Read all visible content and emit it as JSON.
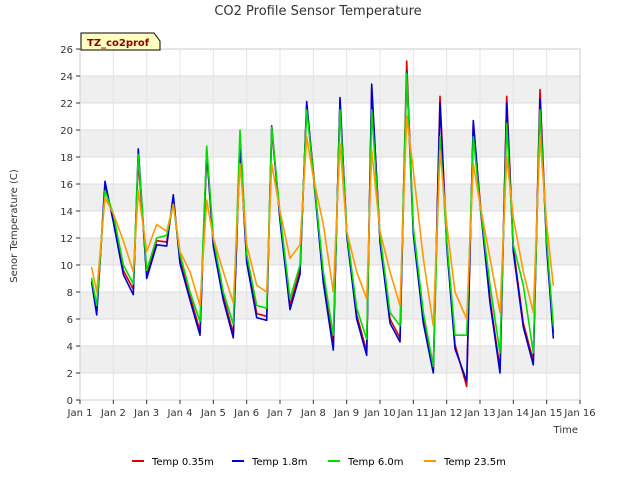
{
  "chart_data": {
    "type": "line",
    "title": "CO2 Profile Sensor Temperature",
    "xlabel": "Time",
    "ylabel": "Senor Temperature (C)",
    "badge": "TZ_co2prof",
    "xlim": [
      1,
      16
    ],
    "ylim": [
      0,
      26
    ],
    "x_ticks": [
      {
        "v": 1,
        "label": "Jan 1"
      },
      {
        "v": 2,
        "label": "Jan 2"
      },
      {
        "v": 3,
        "label": "Jan 3"
      },
      {
        "v": 4,
        "label": "Jan 4"
      },
      {
        "v": 5,
        "label": "Jan 5"
      },
      {
        "v": 6,
        "label": "Jan 6"
      },
      {
        "v": 7,
        "label": "Jan 7"
      },
      {
        "v": 8,
        "label": "Jan 8"
      },
      {
        "v": 9,
        "label": "Jan 9"
      },
      {
        "v": 10,
        "label": "Jan 10"
      },
      {
        "v": 11,
        "label": "Jan 11"
      },
      {
        "v": 12,
        "label": "Jan 12"
      },
      {
        "v": 13,
        "label": "Jan 13"
      },
      {
        "v": 14,
        "label": "Jan 14"
      },
      {
        "v": 15,
        "label": "Jan 15"
      },
      {
        "v": 16,
        "label": "Jan 16"
      }
    ],
    "y_ticks": [
      0,
      2,
      4,
      6,
      8,
      10,
      12,
      14,
      16,
      18,
      20,
      22,
      24,
      26
    ],
    "grid": true,
    "legend_position": "bottom",
    "series": [
      {
        "name": "Temp 0.35m",
        "color": "#dd0000",
        "x": [
          1.35,
          1.5,
          1.75,
          2.0,
          2.3,
          2.6,
          2.75,
          3.0,
          3.3,
          3.6,
          3.8,
          4.0,
          4.3,
          4.6,
          4.8,
          5.0,
          5.3,
          5.6,
          5.8,
          6.0,
          6.3,
          6.6,
          6.75,
          7.0,
          7.3,
          7.6,
          7.8,
          8.0,
          8.3,
          8.6,
          8.8,
          9.0,
          9.3,
          9.6,
          9.75,
          10.0,
          10.3,
          10.6,
          10.8,
          11.0,
          11.3,
          11.6,
          11.8,
          12.0,
          12.25,
          12.6,
          12.8,
          13.0,
          13.3,
          13.6,
          13.8,
          14.0,
          14.3,
          14.6,
          14.8,
          15.0,
          15.2
        ],
        "y": [
          8.8,
          6.5,
          15.8,
          13.5,
          9.6,
          8.2,
          17.8,
          9.3,
          11.8,
          11.7,
          14.8,
          10.4,
          7.7,
          5.1,
          18.3,
          11.7,
          7.7,
          4.9,
          18.5,
          10.5,
          6.4,
          6.2,
          20.0,
          13.6,
          7.0,
          9.6,
          21.8,
          17.0,
          9.0,
          4.0,
          22.2,
          12.5,
          6.3,
          3.6,
          23.1,
          12.0,
          6.0,
          4.6,
          25.1,
          12.6,
          6.0,
          2.2,
          22.5,
          11.7,
          4.1,
          1.0,
          20.5,
          14.8,
          7.5,
          2.3,
          22.5,
          11.3,
          5.7,
          2.9,
          23.0,
          11.5,
          5.0
        ]
      },
      {
        "name": "Temp 1.8m",
        "color": "#0000cc",
        "x": [
          1.35,
          1.5,
          1.75,
          2.0,
          2.3,
          2.6,
          2.75,
          3.0,
          3.3,
          3.6,
          3.8,
          4.0,
          4.3,
          4.6,
          4.8,
          5.0,
          5.3,
          5.6,
          5.8,
          6.0,
          6.3,
          6.6,
          6.75,
          7.0,
          7.3,
          7.6,
          7.8,
          8.0,
          8.3,
          8.6,
          8.8,
          9.0,
          9.3,
          9.6,
          9.75,
          10.0,
          10.3,
          10.6,
          10.8,
          11.0,
          11.3,
          11.6,
          11.8,
          12.0,
          12.25,
          12.6,
          12.8,
          13.0,
          13.3,
          13.6,
          13.8,
          14.0,
          14.3,
          14.6,
          14.8,
          15.0,
          15.2
        ],
        "y": [
          8.7,
          6.3,
          16.2,
          13.2,
          9.3,
          7.8,
          18.6,
          9.0,
          11.5,
          11.4,
          15.2,
          10.1,
          7.4,
          4.8,
          18.5,
          11.4,
          7.4,
          4.6,
          18.8,
          10.2,
          6.1,
          5.9,
          20.3,
          13.3,
          6.7,
          9.3,
          22.1,
          16.7,
          8.7,
          3.7,
          22.4,
          12.2,
          6.0,
          3.3,
          23.4,
          11.7,
          5.7,
          4.3,
          24.3,
          12.3,
          5.7,
          2.0,
          22.0,
          11.4,
          3.8,
          1.4,
          20.7,
          14.5,
          7.2,
          2.0,
          22.0,
          11.0,
          5.4,
          2.6,
          22.3,
          11.2,
          4.6
        ]
      },
      {
        "name": "Temp 6.0m",
        "color": "#00dd00",
        "x": [
          1.35,
          1.5,
          1.75,
          2.0,
          2.3,
          2.6,
          2.75,
          3.0,
          3.3,
          3.6,
          3.8,
          4.0,
          4.3,
          4.6,
          4.8,
          5.0,
          5.3,
          5.6,
          5.8,
          6.0,
          6.3,
          6.6,
          6.75,
          7.0,
          7.3,
          7.6,
          7.8,
          8.0,
          8.3,
          8.6,
          8.8,
          9.0,
          9.3,
          9.6,
          9.75,
          10.0,
          10.3,
          10.6,
          10.8,
          11.0,
          11.3,
          11.6,
          11.8,
          12.0,
          12.25,
          12.6,
          12.8,
          13.0,
          13.3,
          13.6,
          13.8,
          14.0,
          14.3,
          14.6,
          14.8,
          15.0,
          15.2
        ],
        "y": [
          9.0,
          7.0,
          15.5,
          13.8,
          10.0,
          8.6,
          18.2,
          9.6,
          12.0,
          12.2,
          14.5,
          10.8,
          8.0,
          5.8,
          18.8,
          12.0,
          8.0,
          5.6,
          20.0,
          10.8,
          7.0,
          6.8,
          20.2,
          13.8,
          7.5,
          10.0,
          21.5,
          16.8,
          9.5,
          4.8,
          21.5,
          12.5,
          6.8,
          4.5,
          21.5,
          12.2,
          6.5,
          5.5,
          24.2,
          12.8,
          6.5,
          2.5,
          19.5,
          11.8,
          4.8,
          4.8,
          19.5,
          14.5,
          8.5,
          3.5,
          20.5,
          11.5,
          8.5,
          3.5,
          21.5,
          11.8,
          5.5
        ]
      },
      {
        "name": "Temp 23.5m",
        "color": "#ff9900",
        "x": [
          1.35,
          1.5,
          1.75,
          2.0,
          2.3,
          2.6,
          2.75,
          3.0,
          3.3,
          3.6,
          3.8,
          4.0,
          4.3,
          4.6,
          4.8,
          5.0,
          5.3,
          5.6,
          5.8,
          6.0,
          6.3,
          6.6,
          6.75,
          7.0,
          7.3,
          7.6,
          7.8,
          8.0,
          8.3,
          8.6,
          8.8,
          9.0,
          9.3,
          9.6,
          9.75,
          10.0,
          10.3,
          10.6,
          10.8,
          11.0,
          11.3,
          11.6,
          11.8,
          12.0,
          12.25,
          12.6,
          12.8,
          13.0,
          13.3,
          13.6,
          13.8,
          14.0,
          14.3,
          14.6,
          14.8,
          15.0,
          15.2
        ],
        "y": [
          9.8,
          8.0,
          15.0,
          13.8,
          11.8,
          9.5,
          15.5,
          11.0,
          13.0,
          12.5,
          14.5,
          11.0,
          9.5,
          7.0,
          14.8,
          12.0,
          9.5,
          7.2,
          17.5,
          11.5,
          8.5,
          8.0,
          17.5,
          14.0,
          10.5,
          11.5,
          19.5,
          16.5,
          13.0,
          8.0,
          19.0,
          12.5,
          9.5,
          7.5,
          18.5,
          12.5,
          9.5,
          7.0,
          21.0,
          17.0,
          10.5,
          5.5,
          18.5,
          13.0,
          8.0,
          6.0,
          17.5,
          14.5,
          10.5,
          6.5,
          18.0,
          13.5,
          9.5,
          6.5,
          19.5,
          13.0,
          8.5
        ]
      }
    ]
  }
}
